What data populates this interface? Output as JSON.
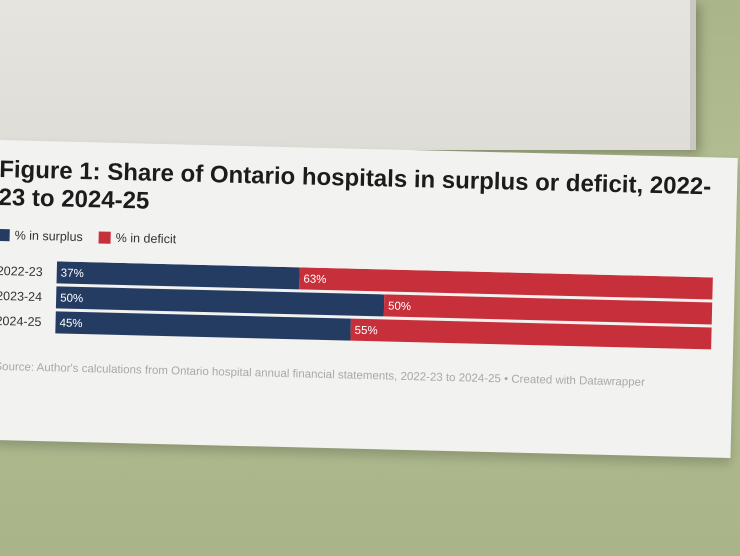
{
  "colors": {
    "surplus": "#243b62",
    "deficit": "#c7303a"
  },
  "chart_data": {
    "type": "bar",
    "orientation": "horizontal",
    "stacked": true,
    "title": "Figure 1: Share of Ontario hospitals in surplus or deficit, 2022-23 to 2024-25",
    "categories": [
      "2022-23",
      "2023-24",
      "2024-25"
    ],
    "series": [
      {
        "name": "% in surplus",
        "values": [
          37,
          50,
          45
        ],
        "labels": [
          "37%",
          "50%",
          "45%"
        ]
      },
      {
        "name": "% in deficit",
        "values": [
          63,
          50,
          55
        ],
        "labels": [
          "63%",
          "50%",
          "55%"
        ]
      }
    ],
    "xlim": [
      0,
      100
    ],
    "grid": false,
    "legend": "top-left"
  },
  "source": "Source: Author's calculations from Ontario hospital annual financial statements, 2022-23 to 2024-25 • Created with Datawrapper"
}
